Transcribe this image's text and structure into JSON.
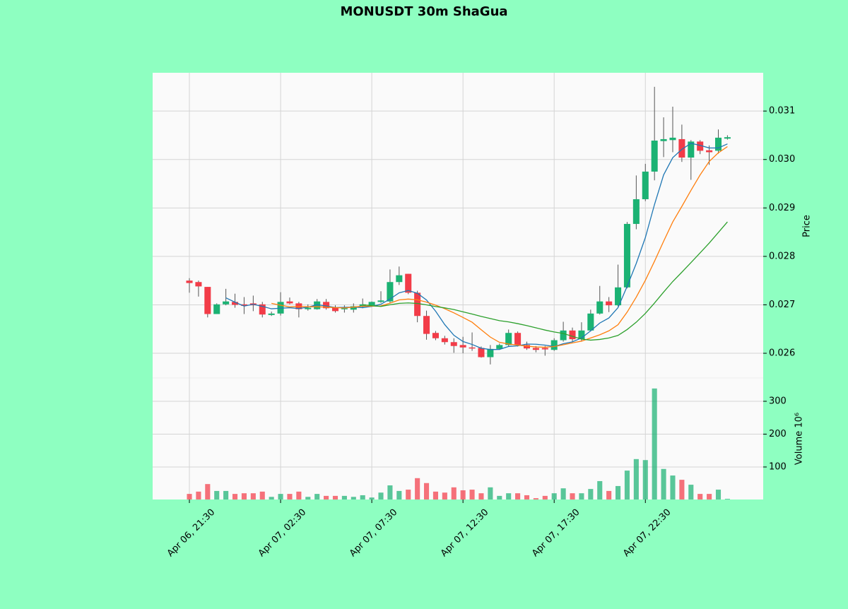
{
  "chart_data": {
    "type": "candlestick",
    "title": "MONUSDT 30m ShaGua",
    "categories": [
      "Apr 06, 21:30",
      null,
      null,
      null,
      null,
      null,
      null,
      null,
      null,
      null,
      "Apr 07, 02:30",
      null,
      null,
      null,
      null,
      null,
      null,
      null,
      null,
      null,
      "Apr 07, 07:30",
      null,
      null,
      null,
      null,
      null,
      null,
      null,
      null,
      null,
      "Apr 07, 12:30",
      null,
      null,
      null,
      null,
      null,
      null,
      null,
      null,
      null,
      "Apr 07, 17:30",
      null,
      null,
      null,
      null,
      null,
      null,
      null,
      null,
      null,
      "Apr 07, 22:30",
      null,
      null,
      null,
      null,
      null,
      null,
      null,
      null,
      null
    ],
    "open": [
      0.0275,
      0.02747,
      0.02737,
      0.02681,
      0.02701,
      0.02706,
      0.02701,
      0.02703,
      0.02701,
      0.02679,
      0.02682,
      0.02707,
      0.02703,
      0.02691,
      0.02691,
      0.02706,
      0.02694,
      0.02691,
      0.0269,
      0.02696,
      0.02699,
      0.02706,
      0.02707,
      0.02747,
      0.02764,
      0.02725,
      0.02677,
      0.02642,
      0.02631,
      0.02623,
      0.02617,
      0.02612,
      0.02611,
      0.02592,
      0.02609,
      0.02617,
      0.02642,
      0.02617,
      0.02611,
      0.02611,
      0.02607,
      0.02627,
      0.02647,
      0.02629,
      0.02647,
      0.02682,
      0.02707,
      0.02699,
      0.02736,
      0.02867,
      0.02918,
      0.02975,
      0.03038,
      0.0304,
      0.03042,
      0.03004,
      0.03037,
      0.03019,
      0.03018,
      0.03043
    ],
    "high": [
      0.02755,
      0.0275,
      0.02737,
      0.02703,
      0.02733,
      0.02723,
      0.02716,
      0.02719,
      0.02706,
      0.02686,
      0.02726,
      0.02715,
      0.02706,
      0.02701,
      0.02712,
      0.02712,
      0.02699,
      0.02699,
      0.02703,
      0.02713,
      0.02707,
      0.02728,
      0.02773,
      0.02779,
      0.02764,
      0.02729,
      0.02688,
      0.02646,
      0.02636,
      0.02631,
      0.02634,
      0.02643,
      0.02614,
      0.02617,
      0.0262,
      0.02649,
      0.02645,
      0.02624,
      0.02615,
      0.02615,
      0.02631,
      0.02665,
      0.02653,
      0.02664,
      0.0269,
      0.02739,
      0.02716,
      0.02783,
      0.02871,
      0.02967,
      0.02991,
      0.0315,
      0.03087,
      0.03109,
      0.03072,
      0.0304,
      0.0304,
      0.03029,
      0.03062,
      0.0305
    ],
    "low": [
      0.02725,
      0.02717,
      0.02674,
      0.02681,
      0.02699,
      0.02694,
      0.02681,
      0.02687,
      0.02674,
      0.02677,
      0.02678,
      0.02701,
      0.02674,
      0.02688,
      0.0269,
      0.0269,
      0.02684,
      0.02684,
      0.02684,
      0.02693,
      0.02696,
      0.02704,
      0.02704,
      0.02741,
      0.02722,
      0.02664,
      0.02628,
      0.02627,
      0.02618,
      0.02601,
      0.026,
      0.02605,
      0.02591,
      0.02577,
      0.02607,
      0.02614,
      0.02614,
      0.02607,
      0.02602,
      0.02595,
      0.02605,
      0.02624,
      0.02624,
      0.02624,
      0.02645,
      0.0268,
      0.02685,
      0.02697,
      0.02734,
      0.02856,
      0.02914,
      0.02957,
      0.03005,
      0.03015,
      0.02995,
      0.02958,
      0.03011,
      0.02989,
      0.03012,
      0.03041
    ],
    "close": [
      0.02745,
      0.02738,
      0.02681,
      0.02701,
      0.02707,
      0.027,
      0.02698,
      0.02699,
      0.0268,
      0.02682,
      0.02706,
      0.02703,
      0.02691,
      0.02694,
      0.02707,
      0.02693,
      0.02687,
      0.02693,
      0.02697,
      0.02701,
      0.02706,
      0.02709,
      0.02747,
      0.02761,
      0.02725,
      0.02677,
      0.0264,
      0.02631,
      0.02623,
      0.02615,
      0.02612,
      0.0261,
      0.02592,
      0.02609,
      0.02617,
      0.02642,
      0.02617,
      0.0261,
      0.02607,
      0.02608,
      0.02627,
      0.02647,
      0.02629,
      0.02647,
      0.02682,
      0.02707,
      0.02699,
      0.02736,
      0.02867,
      0.02918,
      0.02975,
      0.03039,
      0.03042,
      0.03045,
      0.03004,
      0.03037,
      0.03018,
      0.03015,
      0.03045,
      0.03046
    ],
    "up_color": "#1bb273",
    "down_color": "#f23c48",
    "ylabel": "Price",
    "ylim": [
      0.02549,
      0.03179
    ],
    "yticks": [
      0.026,
      0.027,
      0.028,
      0.029,
      {
        "value": 0.03,
        "label": "0.030"
      },
      0.031
    ],
    "grid": true,
    "moving_averages": [
      {
        "color": "#1f77b4",
        "values": [
          null,
          null,
          null,
          null,
          0.027144,
          0.027054,
          0.026974,
          0.02701,
          0.026968,
          0.026918,
          0.02693,
          0.02694,
          0.026924,
          0.026952,
          0.027002,
          0.026976,
          0.026944,
          0.026948,
          0.026954,
          0.026942,
          0.026968,
          0.027012,
          0.02712,
          0.027248,
          0.027296,
          0.027238,
          0.0271,
          0.026868,
          0.026592,
          0.026372,
          0.026242,
          0.026182,
          0.026104,
          0.026076,
          0.02608,
          0.02614,
          0.026154,
          0.02619,
          0.026186,
          0.026168,
          0.026138,
          0.026198,
          0.026236,
          0.026316,
          0.026464,
          0.026624,
          0.026728,
          0.026942,
          0.027382,
          0.027854,
          0.02839,
          0.02907,
          0.029682,
          0.030038,
          0.03021,
          0.030334,
          0.030292,
          0.030238,
          0.030238,
          0.030322
        ]
      },
      {
        "color": "#ff7f0e",
        "values": [
          null,
          null,
          null,
          null,
          null,
          null,
          null,
          null,
          null,
          0.027031,
          0.026992,
          0.026957,
          0.026967,
          0.02696,
          0.02696,
          0.026953,
          0.026942,
          0.026936,
          0.026953,
          0.026972,
          0.026972,
          0.026978,
          0.027034,
          0.027101,
          0.027119,
          0.027103,
          0.027056,
          0.026994,
          0.02692,
          0.026834,
          0.02674,
          0.026641,
          0.026486,
          0.026334,
          0.026226,
          0.026191,
          0.026168,
          0.026147,
          0.026131,
          0.026124,
          0.026139,
          0.026176,
          0.026213,
          0.026251,
          0.026316,
          0.026381,
          0.026463,
          0.026589,
          0.026849,
          0.027159,
          0.027507,
          0.027899,
          0.028312,
          0.02871,
          0.029032,
          0.029362,
          0.029681,
          0.02996,
          0.030138,
          0.030266
        ]
      },
      {
        "color": "#2ca02c",
        "values": [
          null,
          null,
          null,
          null,
          null,
          null,
          null,
          null,
          null,
          null,
          null,
          null,
          null,
          null,
          null,
          null,
          null,
          null,
          null,
          0.0270015,
          0.026982,
          0.0269675,
          0.0270005,
          0.0270305,
          0.0270395,
          0.027028,
          0.026999,
          0.026965,
          0.0269365,
          0.026903,
          0.026856,
          0.0268095,
          0.02676,
          0.0267175,
          0.0266725,
          0.026647,
          0.026612,
          0.0265705,
          0.0265255,
          0.026479,
          0.0264395,
          0.0264085,
          0.0263495,
          0.0262925,
          0.026271,
          0.026286,
          0.0263155,
          0.026368,
          0.02649,
          0.0266415,
          0.026823,
          0.0270375,
          0.0272625,
          0.0274805,
          0.027674,
          0.0278715,
          0.028072,
          0.0282745,
          0.0284935,
          0.0287125
        ]
      }
    ],
    "volume": {
      "ylabel": "Volume  10⁶",
      "values": [
        18,
        25,
        48,
        27,
        27,
        18,
        20,
        20,
        25,
        9,
        18,
        18,
        25,
        9,
        18,
        12,
        12,
        12,
        9,
        14,
        7,
        22,
        44,
        27,
        31,
        66,
        51,
        25,
        22,
        38,
        29,
        31,
        20,
        38,
        12,
        20,
        20,
        14,
        5,
        12,
        20,
        35,
        20,
        20,
        33,
        57,
        27,
        42,
        89,
        124,
        121,
        339,
        94,
        74,
        61,
        46,
        18,
        18,
        31,
        3
      ],
      "ylim": [
        1,
        371
      ],
      "yticks": [
        100,
        200,
        300
      ]
    }
  }
}
